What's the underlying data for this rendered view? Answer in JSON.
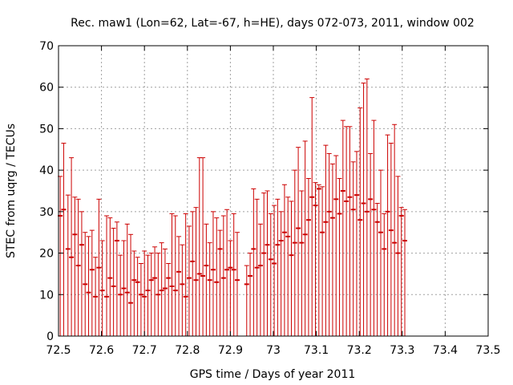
{
  "chart_data": {
    "type": "scatter",
    "style": "error-bars",
    "title": "Rec. maw1 (Lon=62, Lat=-67, h=HE), days 072-073, 2011, window 002",
    "xlabel": "GPS time / Days of year 2011",
    "ylabel": "STEC from uqrg / TECUs",
    "xlim": [
      72.5,
      73.5
    ],
    "ylim": [
      0,
      70
    ],
    "x_ticks": [
      "72.5",
      "72.6",
      "72.7",
      "72.8",
      "72.9",
      "73",
      "73.1",
      "73.2",
      "73.3",
      "73.4",
      "73.5"
    ],
    "x_tick_values": [
      72.5,
      72.6,
      72.7,
      72.8,
      72.9,
      73.0,
      73.1,
      73.2,
      73.3,
      73.4,
      73.5
    ],
    "y_ticks": [
      "0",
      "10",
      "20",
      "30",
      "40",
      "50",
      "60",
      "70"
    ],
    "y_tick_values": [
      0,
      10,
      20,
      30,
      40,
      50,
      60,
      70
    ],
    "grid": true,
    "legend": "none",
    "color": "#cc0000",
    "series": [
      {
        "points": [
          [
            72.504,
            29.0,
            38.5
          ],
          [
            72.512,
            30.5,
            46.5
          ],
          [
            72.522,
            21.0,
            34.0
          ],
          [
            72.53,
            19.0,
            43.0
          ],
          [
            72.538,
            24.5,
            33.5
          ],
          [
            72.546,
            17.0,
            33.0
          ],
          [
            72.554,
            22.0,
            30.0
          ],
          [
            72.562,
            12.5,
            25.0
          ],
          [
            72.57,
            10.5,
            24.0
          ],
          [
            72.578,
            16.0,
            25.5
          ],
          [
            72.586,
            9.5,
            19.0
          ],
          [
            72.594,
            16.5,
            33.0
          ],
          [
            72.602,
            11.0,
            23.0
          ],
          [
            72.612,
            9.5,
            29.0
          ],
          [
            72.62,
            14.0,
            28.5
          ],
          [
            72.628,
            12.0,
            26.0
          ],
          [
            72.636,
            23.0,
            27.5
          ],
          [
            72.644,
            10.0,
            19.5
          ],
          [
            72.652,
            11.5,
            23.0
          ],
          [
            72.66,
            10.5,
            27.0
          ],
          [
            72.668,
            8.0,
            24.5
          ],
          [
            72.676,
            13.5,
            20.5
          ],
          [
            72.684,
            13.0,
            19.0
          ],
          [
            72.692,
            10.0,
            17.5
          ],
          [
            72.7,
            9.5,
            20.5
          ],
          [
            72.708,
            11.0,
            19.5
          ],
          [
            72.716,
            13.5,
            20.0
          ],
          [
            72.724,
            14.0,
            21.5
          ],
          [
            72.732,
            10.0,
            20.0
          ],
          [
            72.74,
            11.0,
            22.5
          ],
          [
            72.748,
            11.5,
            21.0
          ],
          [
            72.756,
            14.0,
            17.5
          ],
          [
            72.764,
            12.0,
            29.5
          ],
          [
            72.772,
            11.0,
            29.0
          ],
          [
            72.78,
            15.5,
            24.0
          ],
          [
            72.788,
            12.5,
            22.0
          ],
          [
            72.796,
            9.5,
            29.5
          ],
          [
            72.804,
            14.0,
            26.5
          ],
          [
            72.812,
            18.0,
            30.0
          ],
          [
            72.82,
            13.5,
            31.0
          ],
          [
            72.828,
            15.0,
            43.0
          ],
          [
            72.836,
            14.5,
            43.0
          ],
          [
            72.844,
            17.0,
            27.0
          ],
          [
            72.852,
            13.5,
            22.5
          ],
          [
            72.86,
            16.0,
            30.0
          ],
          [
            72.868,
            13.0,
            28.5
          ],
          [
            72.876,
            21.0,
            25.5
          ],
          [
            72.884,
            14.0,
            29.0
          ],
          [
            72.892,
            16.0,
            30.5
          ],
          [
            72.9,
            16.5,
            23.0
          ],
          [
            72.908,
            16.0,
            29.5
          ],
          [
            72.916,
            13.5,
            25.0
          ],
          [
            72.938,
            12.5,
            17.0
          ],
          [
            72.946,
            14.5,
            20.0
          ],
          [
            72.954,
            21.0,
            35.5
          ],
          [
            72.962,
            16.5,
            33.0
          ],
          [
            72.97,
            17.0,
            27.0
          ],
          [
            72.978,
            20.0,
            34.5
          ],
          [
            72.986,
            22.0,
            35.0
          ],
          [
            72.994,
            18.5,
            29.5
          ],
          [
            73.002,
            17.5,
            31.5
          ],
          [
            73.01,
            22.0,
            33.0
          ],
          [
            73.018,
            23.0,
            30.0
          ],
          [
            73.026,
            25.0,
            36.5
          ],
          [
            73.034,
            24.0,
            33.5
          ],
          [
            73.042,
            19.5,
            32.5
          ],
          [
            73.05,
            22.5,
            40.0
          ],
          [
            73.058,
            26.0,
            45.5
          ],
          [
            73.066,
            22.5,
            35.0
          ],
          [
            73.074,
            24.5,
            47.0
          ],
          [
            73.082,
            28.0,
            38.0
          ],
          [
            73.09,
            33.5,
            57.5
          ],
          [
            73.098,
            31.5,
            37.0
          ],
          [
            73.106,
            35.5,
            36.5
          ],
          [
            73.114,
            25.0,
            36.0
          ],
          [
            73.122,
            27.5,
            46.0
          ],
          [
            73.13,
            30.0,
            44.0
          ],
          [
            73.138,
            28.5,
            41.5
          ],
          [
            73.146,
            33.0,
            43.5
          ],
          [
            73.154,
            29.5,
            38.0
          ],
          [
            73.162,
            35.0,
            52.0
          ],
          [
            73.17,
            32.5,
            50.5
          ],
          [
            73.178,
            33.5,
            50.5
          ],
          [
            73.186,
            30.5,
            42.0
          ],
          [
            73.194,
            34.0,
            44.5
          ],
          [
            73.202,
            28.0,
            55.0
          ],
          [
            73.21,
            32.0,
            61.0
          ],
          [
            73.218,
            30.0,
            62.0
          ],
          [
            73.226,
            33.0,
            44.0
          ],
          [
            73.234,
            30.5,
            52.0
          ],
          [
            73.242,
            27.5,
            32.0
          ],
          [
            73.25,
            25.0,
            40.0
          ],
          [
            73.258,
            21.0,
            29.5
          ],
          [
            73.266,
            30.0,
            48.5
          ],
          [
            73.274,
            25.5,
            46.5
          ],
          [
            73.282,
            22.5,
            51.0
          ],
          [
            73.29,
            20.0,
            38.5
          ],
          [
            73.298,
            29.0,
            31.0
          ],
          [
            73.306,
            23.0,
            30.5
          ]
        ]
      }
    ]
  }
}
